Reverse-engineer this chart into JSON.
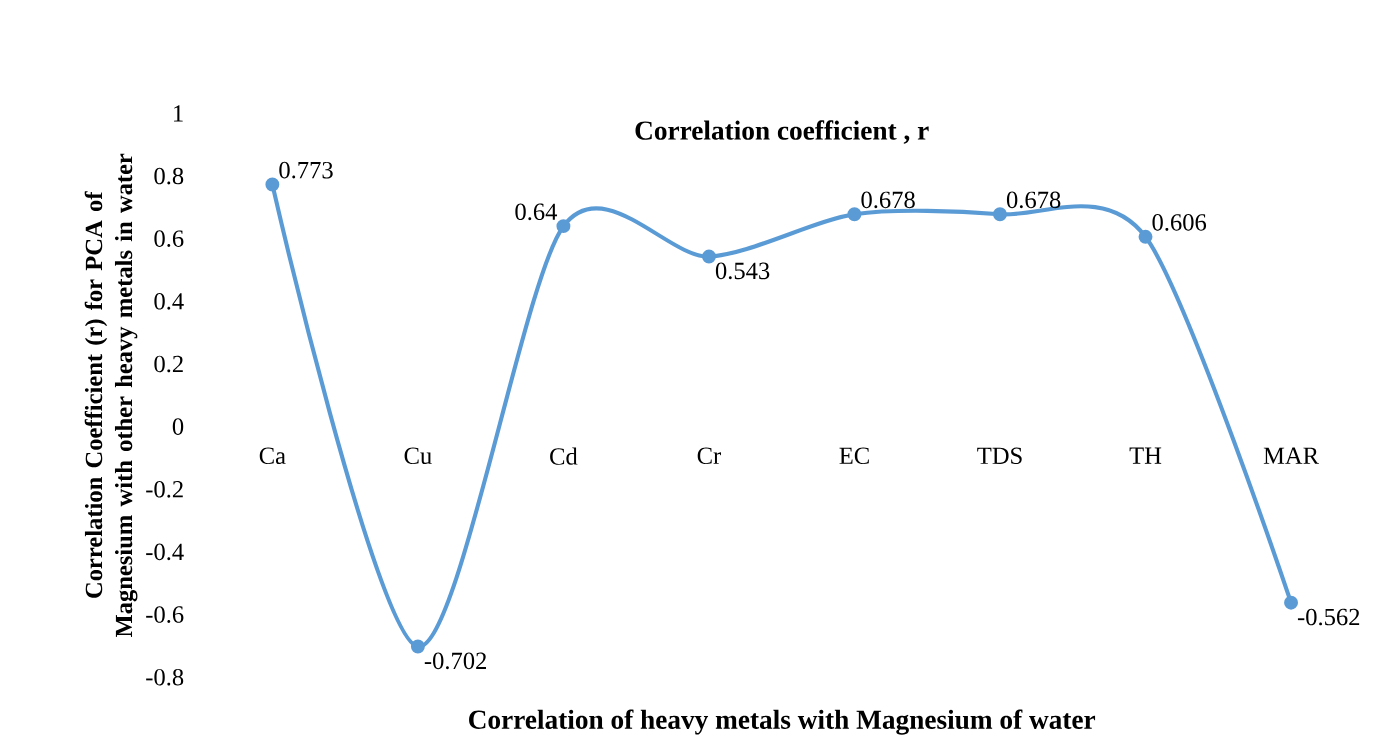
{
  "chart_data": {
    "type": "line",
    "title": "Correlation coefficient , r",
    "xlabel": "Correlation of heavy metals with Magnesium of water",
    "ylabel": "Correlation Coefficient (r) for PCA of Magnesium with other heavy metals in water",
    "categories": [
      "Ca",
      "Cu",
      "Cd",
      "Cr",
      "EC",
      "TDS",
      "TH",
      "MAR"
    ],
    "series": [
      {
        "color": "#5b9bd5",
        "values": [
          0.773,
          -0.702,
          0.64,
          0.543,
          0.678,
          0.678,
          0.606,
          -0.562
        ]
      }
    ],
    "ylim": [
      -0.8,
      1
    ],
    "yticks": [
      -0.8,
      -0.6,
      -0.4,
      -0.2,
      0,
      0.2,
      0.4,
      0.6,
      0.8,
      1
    ],
    "data_labels": true,
    "marker": "circle",
    "grid": false
  }
}
